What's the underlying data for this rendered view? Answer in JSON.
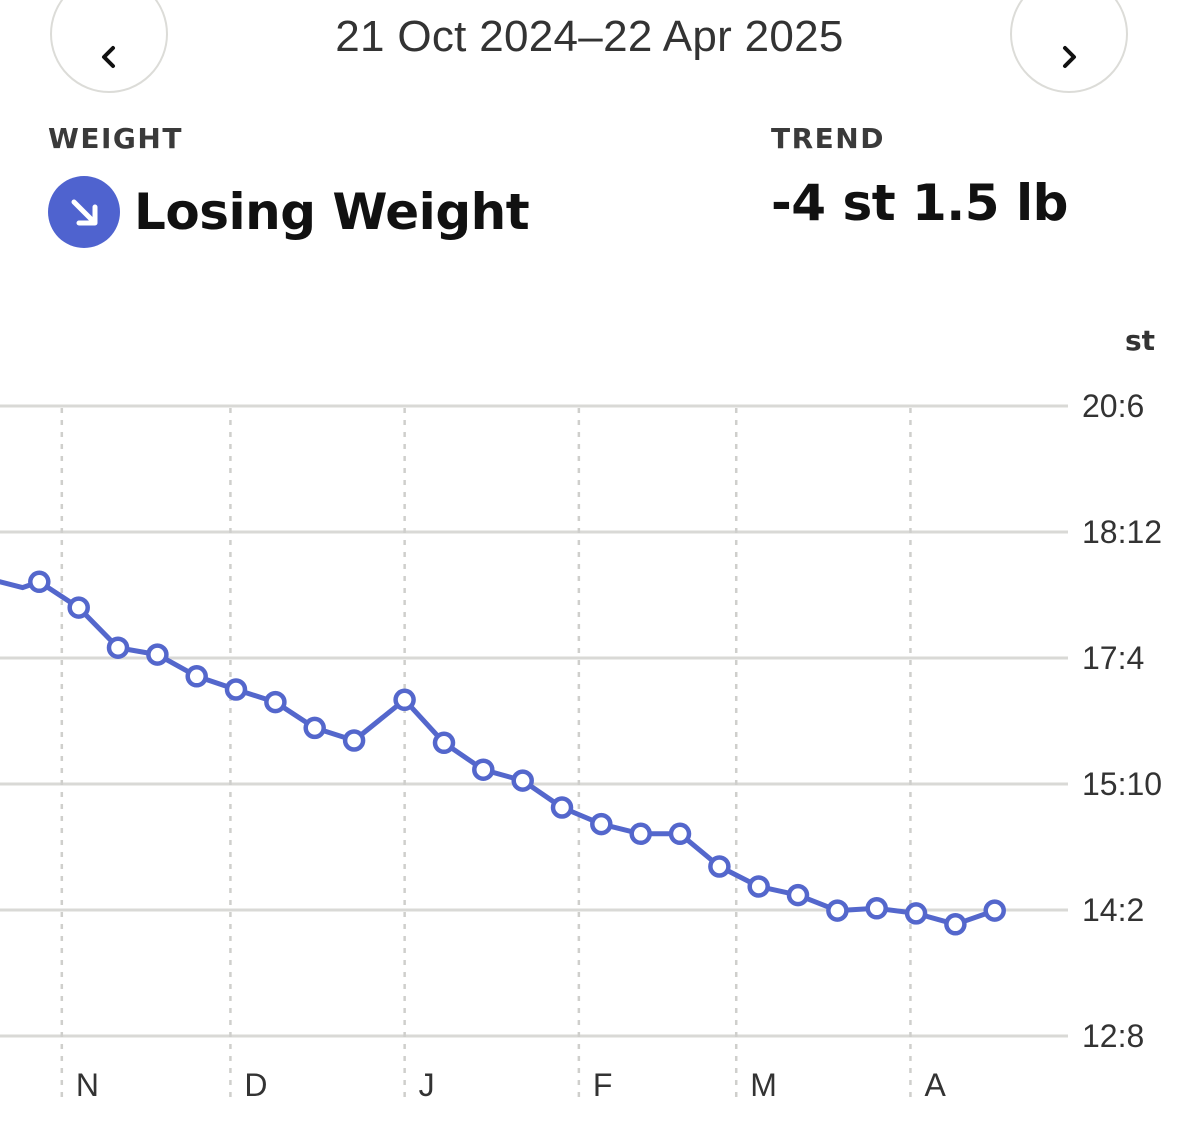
{
  "header": {
    "date_range": "21 Oct 2024–22 Apr 2025",
    "prev_icon": "chevron-left-icon",
    "next_icon": "chevron-right-icon"
  },
  "summary": {
    "weight_label": "WEIGHT",
    "status": "Losing Weight",
    "status_icon": "arrow-down-right-icon",
    "trend_label": "TREND",
    "trend_value": "-4 st 1.5 lb"
  },
  "colors": {
    "accent": "#4f63cf",
    "line": "#5467cc",
    "grid": "#d9d9d6"
  },
  "chart_data": {
    "type": "line",
    "title": "",
    "xlabel": "",
    "ylabel": "st",
    "x_range": [
      "2024-10-21",
      "2025-04-22"
    ],
    "y_range_lb": [
      176,
      290
    ],
    "yticks": [
      {
        "label": "20:6",
        "value_lb": 286
      },
      {
        "label": "18:12",
        "value_lb": 264
      },
      {
        "label": "17:4",
        "value_lb": 242
      },
      {
        "label": "15:10",
        "value_lb": 220
      },
      {
        "label": "14:2",
        "value_lb": 198
      },
      {
        "label": "12:8",
        "value_lb": 176
      }
    ],
    "xticks": [
      {
        "label": "N",
        "date": "2024-11-01"
      },
      {
        "label": "D",
        "date": "2024-12-01"
      },
      {
        "label": "J",
        "date": "2025-01-01"
      },
      {
        "label": "F",
        "date": "2025-02-01"
      },
      {
        "label": "M",
        "date": "2025-03-01"
      },
      {
        "label": "A",
        "date": "2025-04-01"
      }
    ],
    "series": [
      {
        "values": [
          {
            "date": "2024-10-21",
            "lb": 255.3,
            "marker": false
          },
          {
            "date": "2024-10-25",
            "lb": 254.3,
            "marker": false
          },
          {
            "date": "2024-10-28",
            "lb": 255.3,
            "marker": true
          },
          {
            "date": "2024-11-04",
            "lb": 250.8,
            "marker": true
          },
          {
            "date": "2024-11-11",
            "lb": 243.8,
            "marker": true
          },
          {
            "date": "2024-11-18",
            "lb": 242.6,
            "marker": true
          },
          {
            "date": "2024-11-25",
            "lb": 238.8,
            "marker": true
          },
          {
            "date": "2024-12-02",
            "lb": 236.5,
            "marker": true
          },
          {
            "date": "2024-12-09",
            "lb": 234.3,
            "marker": true
          },
          {
            "date": "2024-12-16",
            "lb": 229.8,
            "marker": true
          },
          {
            "date": "2024-12-23",
            "lb": 227.6,
            "marker": true
          },
          {
            "date": "2025-01-01",
            "lb": 234.7,
            "marker": true
          },
          {
            "date": "2025-01-08",
            "lb": 227.2,
            "marker": true
          },
          {
            "date": "2025-01-15",
            "lb": 222.5,
            "marker": true
          },
          {
            "date": "2025-01-22",
            "lb": 220.6,
            "marker": true
          },
          {
            "date": "2025-01-29",
            "lb": 215.9,
            "marker": true
          },
          {
            "date": "2025-02-05",
            "lb": 213.0,
            "marker": true
          },
          {
            "date": "2025-02-12",
            "lb": 211.3,
            "marker": true
          },
          {
            "date": "2025-02-19",
            "lb": 211.3,
            "marker": true
          },
          {
            "date": "2025-02-26",
            "lb": 205.6,
            "marker": true
          },
          {
            "date": "2025-03-05",
            "lb": 202.1,
            "marker": true
          },
          {
            "date": "2025-03-12",
            "lb": 200.6,
            "marker": true
          },
          {
            "date": "2025-03-19",
            "lb": 197.9,
            "marker": true
          },
          {
            "date": "2025-03-26",
            "lb": 198.3,
            "marker": true
          },
          {
            "date": "2025-04-02",
            "lb": 197.4,
            "marker": true
          },
          {
            "date": "2025-04-09",
            "lb": 195.5,
            "marker": true
          },
          {
            "date": "2025-04-16",
            "lb": 197.9,
            "marker": true
          }
        ]
      }
    ],
    "grid": true
  }
}
